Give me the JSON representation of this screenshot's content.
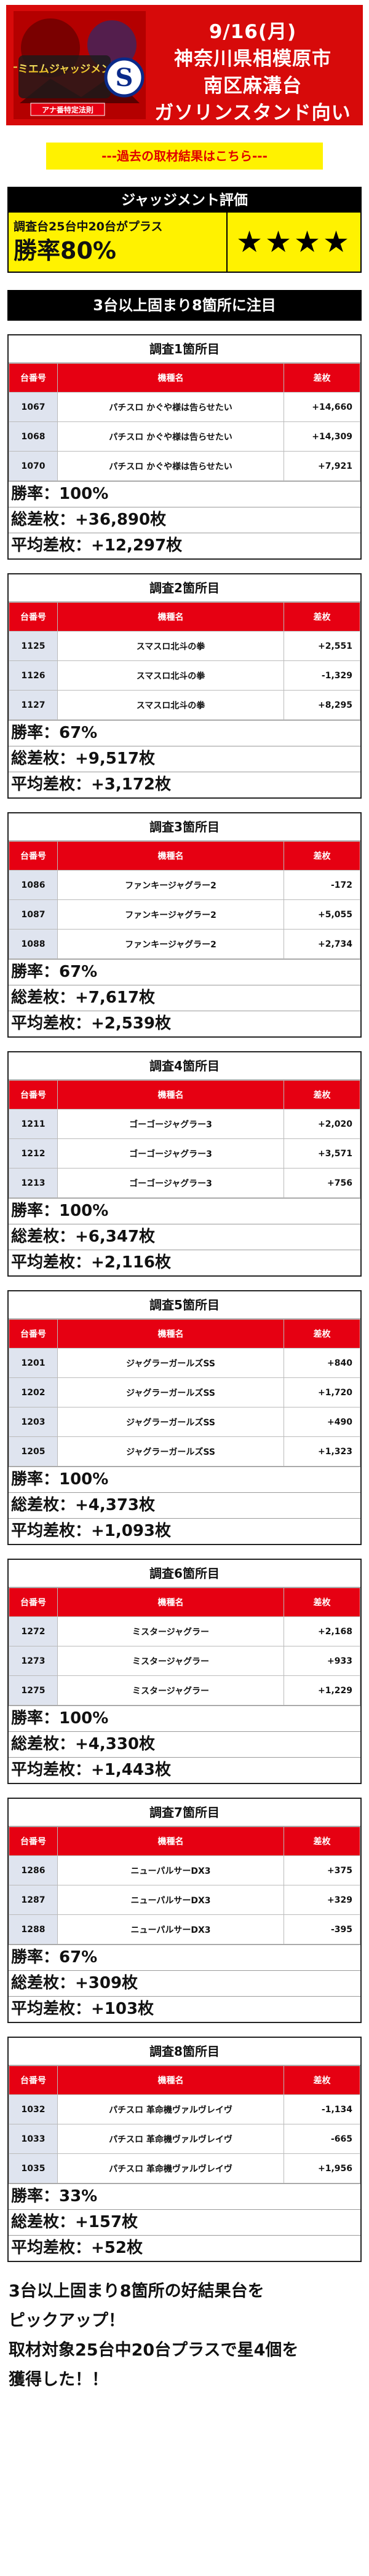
{
  "header": {
    "logo_text_line1": "ナミエムジャッジメント",
    "logo_badge": "アナ番特定法則",
    "date": "9/16(月)",
    "location_line1": "神奈川県相模原市",
    "location_line2": "南区麻溝台",
    "location_line3": "ガソリンスタンド向い"
  },
  "past_link": "---過去の取材結果はこちら---",
  "judgement": {
    "title": "ジャッジメント評価",
    "subtitle": "調査台25台中20台がプラス",
    "rate": "勝率80%",
    "stars": "★★★★"
  },
  "notice": "3台以上固まり8箇所に注目",
  "columns": {
    "num": "台番号",
    "machine": "機種名",
    "diff": "差枚"
  },
  "surveys": [
    {
      "title": "調査1箇所目",
      "rows": [
        {
          "num": "1067",
          "machine": "パチスロ かぐや様は告らせたい",
          "diff": "+14,660"
        },
        {
          "num": "1068",
          "machine": "パチスロ かぐや様は告らせたい",
          "diff": "+14,309"
        },
        {
          "num": "1070",
          "machine": "パチスロ かぐや様は告らせたい",
          "diff": "+7,921"
        }
      ],
      "win_rate": "勝率：100%",
      "total": "総差枚：+36,890枚",
      "avg": "平均差枚：+12,297枚"
    },
    {
      "title": "調査2箇所目",
      "rows": [
        {
          "num": "1125",
          "machine": "スマスロ北斗の拳",
          "diff": "+2,551"
        },
        {
          "num": "1126",
          "machine": "スマスロ北斗の拳",
          "diff": "-1,329"
        },
        {
          "num": "1127",
          "machine": "スマスロ北斗の拳",
          "diff": "+8,295"
        }
      ],
      "win_rate": "勝率：67%",
      "total": "総差枚：+9,517枚",
      "avg": "平均差枚：+3,172枚"
    },
    {
      "title": "調査3箇所目",
      "rows": [
        {
          "num": "1086",
          "machine": "ファンキージャグラー2",
          "diff": "-172"
        },
        {
          "num": "1087",
          "machine": "ファンキージャグラー2",
          "diff": "+5,055"
        },
        {
          "num": "1088",
          "machine": "ファンキージャグラー2",
          "diff": "+2,734"
        }
      ],
      "win_rate": "勝率：67%",
      "total": "総差枚：+7,617枚",
      "avg": "平均差枚：+2,539枚"
    },
    {
      "title": "調査4箇所目",
      "rows": [
        {
          "num": "1211",
          "machine": "ゴーゴージャグラー3",
          "diff": "+2,020"
        },
        {
          "num": "1212",
          "machine": "ゴーゴージャグラー3",
          "diff": "+3,571"
        },
        {
          "num": "1213",
          "machine": "ゴーゴージャグラー3",
          "diff": "+756"
        }
      ],
      "win_rate": "勝率：100%",
      "total": "総差枚：+6,347枚",
      "avg": "平均差枚：+2,116枚"
    },
    {
      "title": "調査5箇所目",
      "rows": [
        {
          "num": "1201",
          "machine": "ジャグラーガールズSS",
          "diff": "+840"
        },
        {
          "num": "1202",
          "machine": "ジャグラーガールズSS",
          "diff": "+1,720"
        },
        {
          "num": "1203",
          "machine": "ジャグラーガールズSS",
          "diff": "+490"
        },
        {
          "num": "1205",
          "machine": "ジャグラーガールズSS",
          "diff": "+1,323"
        }
      ],
      "win_rate": "勝率：100%",
      "total": "総差枚：+4,373枚",
      "avg": "平均差枚：+1,093枚"
    },
    {
      "title": "調査6箇所目",
      "rows": [
        {
          "num": "1272",
          "machine": "ミスタージャグラー",
          "diff": "+2,168"
        },
        {
          "num": "1273",
          "machine": "ミスタージャグラー",
          "diff": "+933"
        },
        {
          "num": "1275",
          "machine": "ミスタージャグラー",
          "diff": "+1,229"
        }
      ],
      "win_rate": "勝率：100%",
      "total": "総差枚：+4,330枚",
      "avg": "平均差枚：+1,443枚"
    },
    {
      "title": "調査7箇所目",
      "rows": [
        {
          "num": "1286",
          "machine": "ニューパルサーDX3",
          "diff": "+375"
        },
        {
          "num": "1287",
          "machine": "ニューパルサーDX3",
          "diff": "+329"
        },
        {
          "num": "1288",
          "machine": "ニューパルサーDX3",
          "diff": "-395"
        }
      ],
      "win_rate": "勝率：67%",
      "total": "総差枚：+309枚",
      "avg": "平均差枚：+103枚"
    },
    {
      "title": "調査8箇所目",
      "rows": [
        {
          "num": "1032",
          "machine": "パチスロ 革命機ヴァルヴレイヴ",
          "diff": "-1,134"
        },
        {
          "num": "1033",
          "machine": "パチスロ 革命機ヴァルヴレイヴ",
          "diff": "-665"
        },
        {
          "num": "1035",
          "machine": "パチスロ 革命機ヴァルヴレイヴ",
          "diff": "+1,956"
        }
      ],
      "win_rate": "勝率：33%",
      "total": "総差枚：+157枚",
      "avg": "平均差枚：+52枚"
    }
  ],
  "footer": {
    "line1": "3台以上固まり8箇所の好結果台を",
    "line2": "ピックアップ！",
    "line3": "取材対象25台中20台プラスで星4個を",
    "line4": "獲得した！！"
  },
  "colors": {
    "header_red": "#d70a0a",
    "table_red": "#e60012",
    "highlight_yellow": "#fff200",
    "num_cell": "#dfe4ef"
  }
}
